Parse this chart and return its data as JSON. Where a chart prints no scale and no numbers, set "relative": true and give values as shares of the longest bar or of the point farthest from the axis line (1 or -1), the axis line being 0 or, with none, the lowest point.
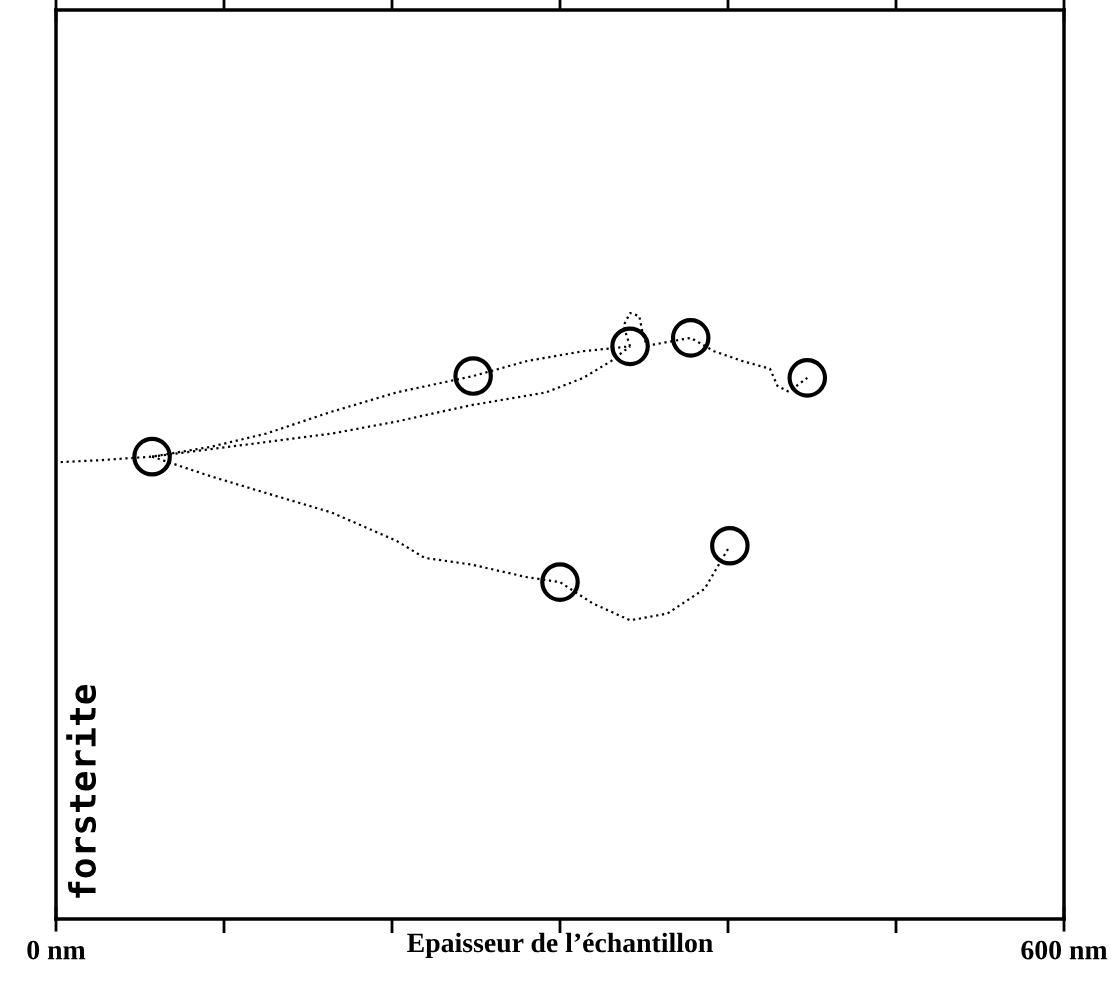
{
  "chart_data": {
    "type": "line",
    "relative": true,
    "xlabel": "Epaisseur de l’échantillon",
    "annotations": [
      "forsterite"
    ],
    "xlim": [
      0,
      600
    ],
    "xticks": [
      {
        "value": 0,
        "label": "0 nm"
      },
      {
        "value": 100,
        "label": null
      },
      {
        "value": 200,
        "label": null
      },
      {
        "value": 300,
        "label": null
      },
      {
        "value": 400,
        "label": null
      },
      {
        "value": 500,
        "label": null
      },
      {
        "value": 600,
        "label": "600 nm"
      }
    ],
    "tick_labels": "x",
    "legend": false,
    "series": [
      {
        "line_style": "dotted",
        "marker": "none",
        "color": "#000000",
        "x": [
          2.8,
          25.0,
          57.2,
          91.7,
          125.0,
          163.9,
          202.8,
          248.3,
          280.6,
          313.9,
          341.7
        ],
        "values": [
          0.754,
          0.757,
          0.763,
          0.779,
          0.801,
          0.837,
          0.869,
          0.896,
          0.921,
          0.937,
          0.945
        ]
      },
      {
        "line_style": "dotted",
        "marker": "none",
        "color": "#000000",
        "x": [
          57.2,
          119.4,
          163.9,
          202.8,
          247.2,
          291.7,
          313.9,
          330.6,
          341.7
        ],
        "values": [
          0.763,
          0.785,
          0.801,
          0.821,
          0.848,
          0.869,
          0.893,
          0.921,
          0.945
        ]
      },
      {
        "line_style": "dotted",
        "marker": "none",
        "color": "#000000",
        "x": [
          341.7,
          337.8,
          341.7,
          347.2,
          349.4,
          351.7,
          377.8,
          391.7,
          408.3,
          425.0,
          429.4,
          436.1,
          447.2
        ],
        "values": [
          0.945,
          0.979,
          1.0,
          0.995,
          0.964,
          0.946,
          0.959,
          0.937,
          0.921,
          0.908,
          0.88,
          0.87,
          0.893
        ]
      },
      {
        "line_style": "dotted",
        "marker": "none",
        "color": "#000000",
        "x": [
          57.2,
          91.7,
          125.0,
          163.9,
          202.8,
          219.4,
          247.2,
          280.6,
          300.0,
          319.4,
          341.7,
          363.9,
          386.1,
          401.1
        ],
        "values": [
          0.763,
          0.731,
          0.703,
          0.671,
          0.624,
          0.596,
          0.585,
          0.564,
          0.556,
          0.521,
          0.493,
          0.504,
          0.545,
          0.616
        ]
      },
      {
        "type": "scatter",
        "marker": "circle",
        "color": "#000000",
        "x": [
          57.2,
          248.3,
          341.7,
          377.8,
          447.2,
          300.0,
          401.1
        ],
        "values": [
          0.763,
          0.896,
          0.945,
          0.959,
          0.893,
          0.556,
          0.616
        ]
      }
    ]
  }
}
